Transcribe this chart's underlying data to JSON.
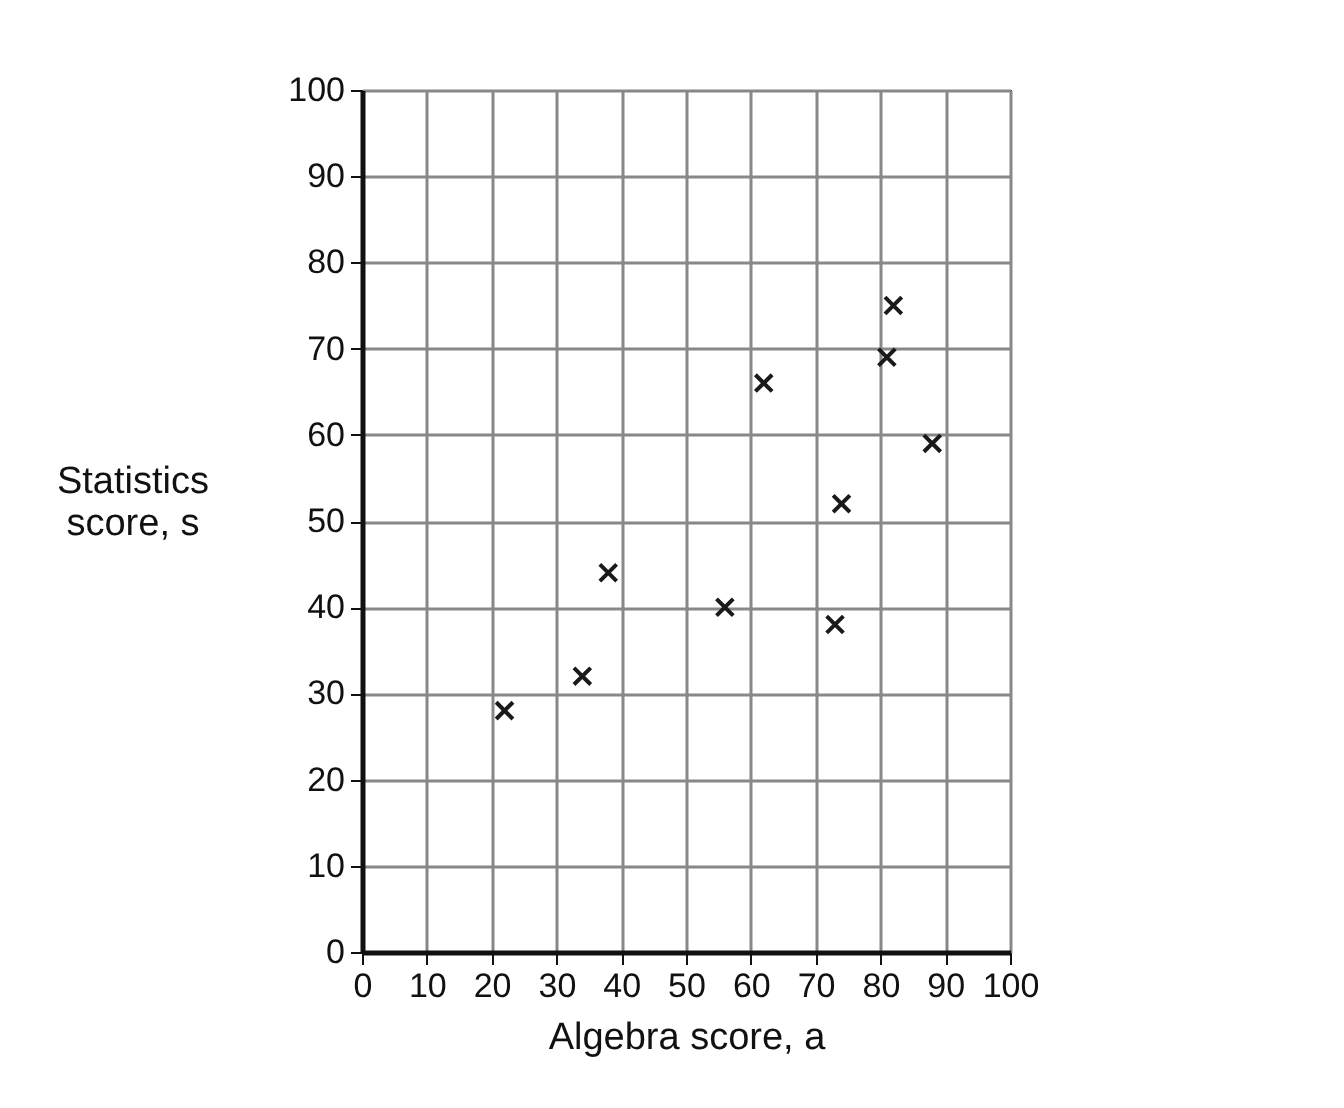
{
  "chart_data": {
    "type": "scatter",
    "xlabel": "Algebra score, a",
    "ylabel": "Statistics\nscore, s",
    "x": [
      22,
      34,
      38,
      56,
      62,
      73,
      74,
      81,
      82,
      88
    ],
    "series": [
      {
        "color": "#1a1a1a",
        "values": [
          28,
          32,
          44,
          40,
          66,
          38,
          52,
          69,
          75,
          59
        ]
      }
    ],
    "xlim": [
      0,
      100
    ],
    "ylim": [
      0,
      100
    ],
    "xticks": [
      0,
      10,
      20,
      30,
      40,
      50,
      60,
      70,
      80,
      90,
      100
    ],
    "yticks": [
      0,
      10,
      20,
      30,
      40,
      50,
      60,
      70,
      80,
      90,
      100
    ],
    "grid": true,
    "marker": "cross"
  }
}
